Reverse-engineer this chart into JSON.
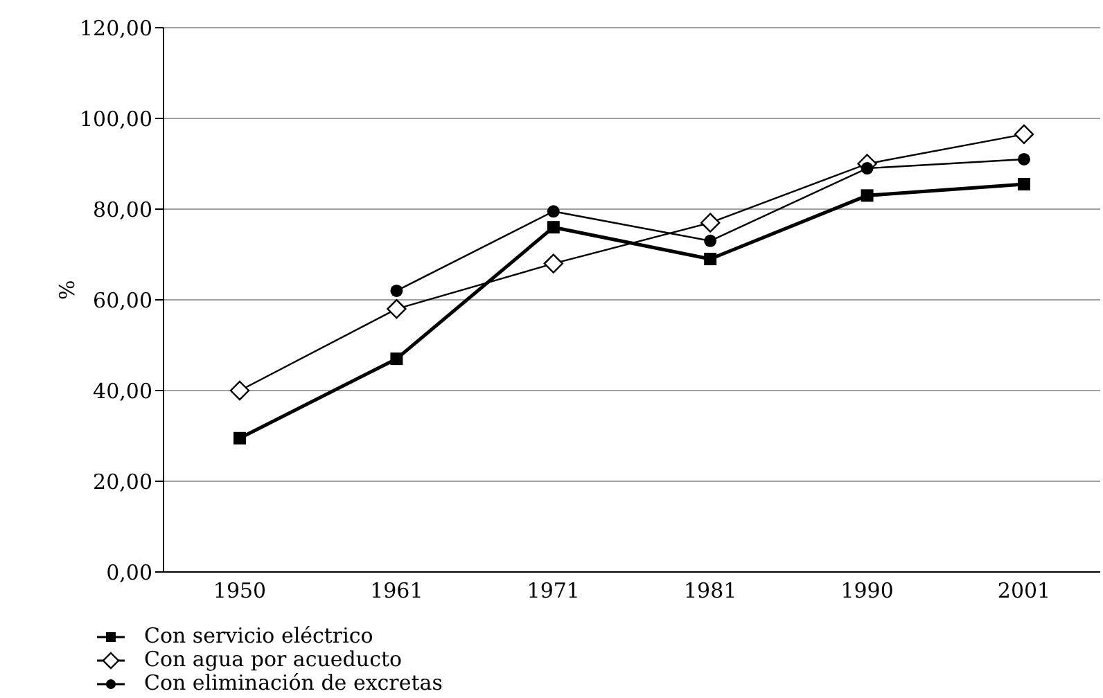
{
  "chart_data": {
    "type": "line",
    "ylabel": "%",
    "categories": [
      "1950",
      "1961",
      "1971",
      "1981",
      "1990",
      "2001"
    ],
    "series": [
      {
        "name": "Con servicio eléctrico",
        "color": "#000000",
        "marker": "square",
        "values": [
          29.5,
          47,
          76,
          69,
          83,
          85.5
        ]
      },
      {
        "name": "Con agua por acueducto",
        "color": "#000000",
        "marker": "diamond",
        "values": [
          40,
          58,
          68,
          77,
          90,
          96.5
        ]
      },
      {
        "name": "Con eliminación de excretas",
        "color": "#000000",
        "marker": "circle",
        "values": [
          null,
          62,
          79.5,
          73,
          89,
          91
        ]
      }
    ],
    "ylim": [
      0,
      120
    ],
    "yticks": [
      {
        "value": 0,
        "label": "0,00"
      },
      {
        "value": 20,
        "label": "20,00"
      },
      {
        "value": 40,
        "label": "40,00"
      },
      {
        "value": 60,
        "label": "60,00"
      },
      {
        "value": 80,
        "label": "80,00"
      },
      {
        "value": 100,
        "label": "100,00"
      },
      {
        "value": 120,
        "label": "120,00"
      }
    ],
    "grid": "y",
    "legend": "bottom left",
    "line_style": "solid"
  }
}
